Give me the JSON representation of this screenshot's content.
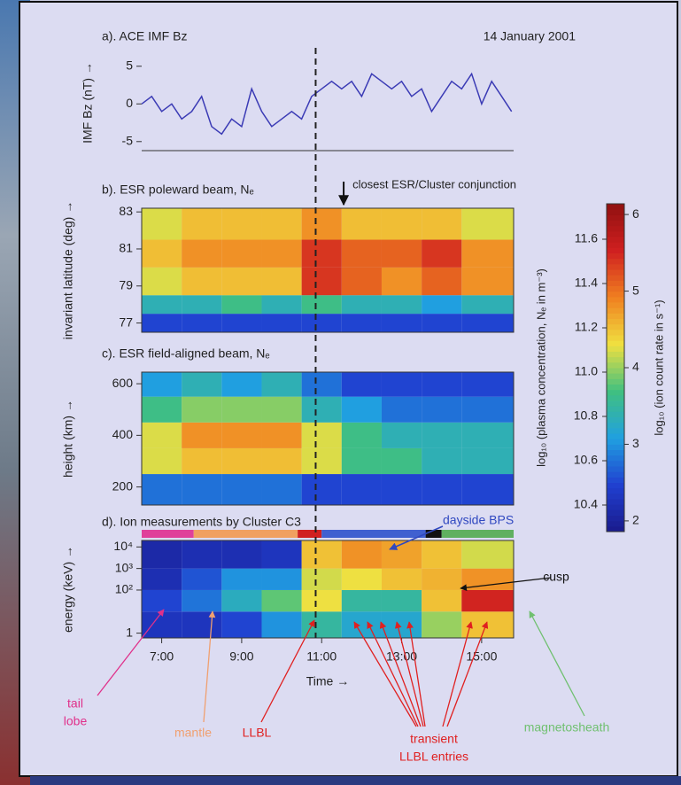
{
  "chart_data": [
    {
      "type": "line",
      "title": "a). ACE IMF Bz",
      "subtitle": "14 January 2001",
      "y_label": "IMF Bz (nT) →",
      "x": [
        6.5,
        6.75,
        7,
        7.25,
        7.5,
        7.75,
        8,
        8.25,
        8.5,
        8.75,
        9,
        9.25,
        9.5,
        9.75,
        10,
        10.25,
        10.5,
        10.75,
        11,
        11.25,
        11.5,
        11.75,
        12,
        12.25,
        12.5,
        12.75,
        13,
        13.25,
        13.5,
        13.75,
        14,
        14.25,
        14.5,
        14.75,
        15,
        15.25,
        15.5,
        15.75
      ],
      "values": [
        0,
        1,
        -1,
        0,
        -2,
        -1,
        1,
        -3,
        -4,
        -2,
        -3,
        2,
        -1,
        -3,
        -2,
        -1,
        -2,
        1,
        2,
        3,
        2,
        3,
        1,
        4,
        3,
        2,
        3,
        1,
        2,
        -1,
        1,
        3,
        2,
        4,
        0,
        3,
        1,
        -1
      ],
      "color": "#3b3bb5",
      "xlim": [
        6.5,
        15.8
      ],
      "ylim": [
        -6.2,
        6.5
      ],
      "yticks": [
        -5,
        0,
        5
      ],
      "vline": 10.85
    },
    {
      "type": "heatmap",
      "title": "b). ESR poleward beam, Nₑ",
      "y_label": "invariant latitude (deg) →",
      "axis": "z",
      "x_edges": [
        6.5,
        7.5,
        8.5,
        9.5,
        10.5,
        11.5,
        12.5,
        13.5,
        14.5,
        15.8
      ],
      "y_edges": [
        76.5,
        77.5,
        78.5,
        80,
        81.5,
        83.2
      ],
      "values": [
        [
          10.5,
          10.5,
          10.5,
          10.5,
          10.5,
          10.5,
          10.5,
          10.5,
          10.5
        ],
        [
          10.8,
          10.8,
          10.9,
          10.8,
          10.9,
          10.8,
          10.8,
          10.7,
          10.8
        ],
        [
          11.1,
          11.2,
          11.2,
          11.2,
          11.5,
          11.4,
          11.3,
          11.4,
          11.3
        ],
        [
          11.2,
          11.3,
          11.3,
          11.3,
          11.5,
          11.4,
          11.4,
          11.5,
          11.3
        ],
        [
          11.1,
          11.2,
          11.2,
          11.2,
          11.3,
          11.2,
          11.2,
          11.2,
          11.1
        ]
      ],
      "xlim": [
        6.5,
        15.8
      ],
      "ylim": [
        76.5,
        83.2
      ],
      "yticks": [
        77,
        79,
        81,
        83
      ],
      "annotation": {
        "text": "closest ESR/Cluster conjunction",
        "x": 11.55
      }
    },
    {
      "type": "heatmap",
      "title": "c). ESR field-aligned beam, Nₑ",
      "y_label": "height (km) →",
      "axis": "z",
      "x_edges": [
        6.5,
        7.5,
        8.5,
        9.5,
        10.5,
        11.5,
        12.5,
        13.5,
        14.5,
        15.8
      ],
      "y_edges": [
        130,
        250,
        350,
        450,
        550,
        645
      ],
      "values": [
        [
          10.6,
          10.6,
          10.6,
          10.6,
          10.5,
          10.5,
          10.5,
          10.5,
          10.5
        ],
        [
          11.1,
          11.2,
          11.2,
          11.2,
          11.1,
          10.9,
          10.9,
          10.8,
          10.8
        ],
        [
          11.1,
          11.3,
          11.3,
          11.3,
          11.1,
          10.9,
          10.8,
          10.8,
          10.8
        ],
        [
          10.9,
          11.0,
          11.0,
          11.0,
          10.8,
          10.7,
          10.6,
          10.6,
          10.6
        ],
        [
          10.7,
          10.8,
          10.7,
          10.8,
          10.6,
          10.5,
          10.5,
          10.5,
          10.5
        ]
      ],
      "xlim": [
        6.5,
        15.8
      ],
      "ylim": [
        130,
        645
      ],
      "yticks": [
        200,
        400,
        600
      ]
    },
    {
      "type": "heatmap",
      "title": "d). Ion measurements by Cluster C3",
      "y_label": "energy (keV) →",
      "x_label": "Time →",
      "axis": "z2",
      "y_log": true,
      "x_edges": [
        6.5,
        7.5,
        8.5,
        9.5,
        10.5,
        11.5,
        12.5,
        13.5,
        14.5,
        15.8
      ],
      "y_edges": [
        0.6,
        10,
        100,
        1000,
        20000
      ],
      "values": [
        [
          2.3,
          2.3,
          2.5,
          3.0,
          3.5,
          3.2,
          3.2,
          4.0,
          4.5
        ],
        [
          2.5,
          2.8,
          3.3,
          3.8,
          4.3,
          3.5,
          3.5,
          4.5,
          5.5
        ],
        [
          2.2,
          2.6,
          3.0,
          3.0,
          4.2,
          4.3,
          4.5,
          4.6,
          4.8
        ],
        [
          2.1,
          2.2,
          2.2,
          2.3,
          4.5,
          4.8,
          4.7,
          4.5,
          4.2
        ]
      ],
      "xlim": [
        6.5,
        15.8
      ],
      "ylim": [
        0.6,
        20000
      ],
      "yticks": [
        1,
        {
          "value": 100,
          "label": "10²"
        },
        {
          "value": 1000,
          "label": "10³"
        },
        {
          "value": 10000,
          "label": "10⁴"
        }
      ],
      "xticks": [
        {
          "value": 7,
          "label": "7:00"
        },
        {
          "value": 9,
          "label": "9:00"
        },
        {
          "value": 11,
          "label": "11:00"
        },
        {
          "value": 13,
          "label": "13:00"
        },
        {
          "value": 15,
          "label": "15:00"
        }
      ],
      "region_label": "dayside BPS",
      "region_bar": [
        {
          "start": 6.5,
          "end": 7.8,
          "color": "#e0409a"
        },
        {
          "start": 7.8,
          "end": 10.4,
          "color": "#f0a060"
        },
        {
          "start": 10.4,
          "end": 11,
          "color": "#d02020"
        },
        {
          "start": 11,
          "end": 13.6,
          "color": "#4060d0"
        },
        {
          "start": 13.6,
          "end": 14,
          "color": "#111111"
        },
        {
          "start": 14,
          "end": 15.8,
          "color": "#60b060"
        }
      ],
      "annotations": [
        {
          "lines": [
            "tail",
            "lobe"
          ],
          "color": "#e0308a"
        },
        {
          "lines": [
            "mantle"
          ],
          "color": "#f0a070"
        },
        {
          "lines": [
            "LLBL"
          ],
          "color": "#e02020"
        },
        {
          "lines": [
            "transient",
            "LLBL entries"
          ],
          "color": "#e02020"
        },
        {
          "lines": [
            "magnetosheath"
          ],
          "color": "#70c070"
        },
        {
          "lines": [
            "cusp"
          ],
          "color": "#111111"
        }
      ]
    },
    {
      "type": "colorbar",
      "colors": [
        "#1a1a8c",
        "#2040d0",
        "#20a0e0",
        "#40c080",
        "#f0e040",
        "#f08020",
        "#d02020",
        "#901010"
      ],
      "label": "log₁₀ (plasma concentration, Nₑ in m⁻³)",
      "label2": "log₁₀ (ion count rate in s⁻¹)",
      "zlim": [
        10.28,
        11.76
      ],
      "zticks": [
        10.4,
        10.6,
        10.8,
        {
          "value": 11,
          "label": "11.0"
        },
        11.2,
        11.4,
        11.6
      ],
      "z2lim": [
        1.86,
        6.14
      ],
      "z2ticks": [
        2,
        3,
        4,
        5,
        6
      ]
    }
  ]
}
